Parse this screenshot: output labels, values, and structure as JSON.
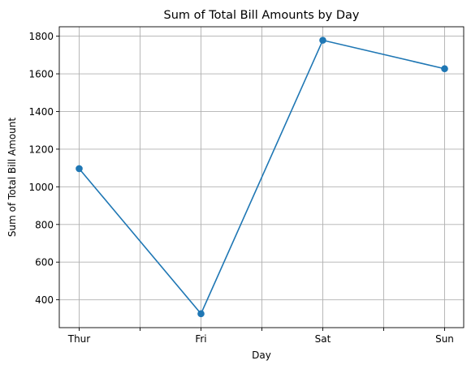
{
  "chart_data": {
    "type": "line",
    "title": "Sum of Total Bill Amounts by Day",
    "xlabel": "Day",
    "ylabel": "Sum of Total Bill Amount",
    "categories": [
      "Thur",
      "Fri",
      "Sat",
      "Sun"
    ],
    "minor_x_ticks": true,
    "series": [
      {
        "values": [
          1096.33,
          325.88,
          1778.4,
          1627.16
        ],
        "color": "#1f77b4",
        "marker": "circle"
      }
    ],
    "ylim": [
      252,
      1850
    ],
    "yticks": [
      400,
      600,
      800,
      1000,
      1200,
      1400,
      1600,
      1800
    ],
    "grid": true,
    "legend": "none"
  }
}
